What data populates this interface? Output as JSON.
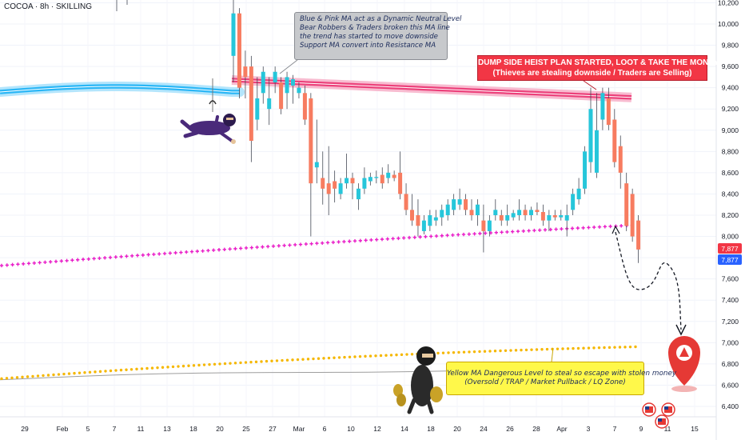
{
  "header": {
    "symbol": "COCOA · 8h · SKILLING"
  },
  "annotations": {
    "gray_note": [
      "Blue & Pink MA act as a Dynamic Neutral Level",
      "Bear Robbers & Traders broken this MA line",
      "the trend has started to move downside",
      "Support MA convert into Resistance MA"
    ],
    "red_banner": [
      "DUMP SIDE HEIST PLAN STARTED, LOOT & TAKE THE MONEY",
      "(Thieves are stealing downside / Traders are Selling)"
    ],
    "yellow_note": [
      "Yellow MA Dangerous Level to steal so escape with stolen money",
      "(Oversold / TRAP / Market Pullback / LQ Zone)"
    ]
  },
  "price_tags": {
    "last_price": "7,877",
    "last_price_secondary": "7,877",
    "colors": {
      "last": "#2962ff",
      "secondary": "#f23645"
    }
  },
  "chart_data": {
    "type": "candlestick",
    "ylim": [
      6320,
      10280
    ],
    "y_ticks": [
      "6,400",
      "6,600",
      "6,800",
      "7,000",
      "7,200",
      "7,400",
      "7,600",
      "7,800",
      "8,000",
      "8,200",
      "8,400",
      "8,600",
      "8,800",
      "9,000",
      "9,200",
      "9,400",
      "9,600",
      "9,800",
      "10,000",
      "10,200"
    ],
    "y_tick_values": [
      6400,
      6600,
      6800,
      7000,
      7200,
      7400,
      7600,
      7800,
      8000,
      8200,
      8400,
      8600,
      8800,
      9000,
      9200,
      9400,
      9600,
      9800,
      10000,
      10200
    ],
    "x_ticks": [
      "29",
      "Feb",
      "5",
      "7",
      "11",
      "13",
      "18",
      "20",
      "25",
      "27",
      "Mar",
      "6",
      "10",
      "12",
      "14",
      "18",
      "20",
      "24",
      "26",
      "28",
      "Apr",
      "3",
      "7",
      "9",
      "11",
      "15"
    ],
    "colors": {
      "up": "#26c6da",
      "down": "#f77c60",
      "blue_ma": "#29b6f6",
      "pink_ma": "#ec407a",
      "magenta_dots": "#e91ec8",
      "yellow_dots": "#f5b700",
      "gray_line": "#9e9e9e"
    },
    "candles": [
      [
        9700,
        10290,
        9450,
        10100
      ],
      [
        10100,
        10150,
        9300,
        9400
      ],
      [
        9600,
        9750,
        9300,
        9500
      ],
      [
        9600,
        9700,
        8700,
        8900
      ],
      [
        9100,
        9500,
        9000,
        9300
      ],
      [
        9350,
        9600,
        9250,
        9550
      ],
      [
        9200,
        9500,
        9050,
        9300
      ],
      [
        9450,
        9600,
        9350,
        9550
      ],
      [
        9450,
        9500,
        9150,
        9200
      ],
      [
        9350,
        9550,
        9200,
        9500
      ],
      [
        9420,
        9520,
        9250,
        9480
      ],
      [
        9350,
        9450,
        9300,
        9400
      ],
      [
        9350,
        9420,
        9050,
        9100
      ],
      [
        9300,
        9350,
        8000,
        8500
      ],
      [
        8650,
        9100,
        8500,
        8700
      ],
      [
        8550,
        8800,
        8300,
        8450
      ],
      [
        8500,
        8850,
        8200,
        8400
      ],
      [
        8520,
        8620,
        8320,
        8450
      ],
      [
        8400,
        8550,
        8350,
        8500
      ],
      [
        8500,
        8780,
        8450,
        8550
      ],
      [
        8550,
        8600,
        8350,
        8500
      ],
      [
        8350,
        8500,
        8250,
        8450
      ],
      [
        8450,
        8650,
        8400,
        8550
      ],
      [
        8520,
        8600,
        8480,
        8560
      ],
      [
        8550,
        8620,
        8500,
        8560
      ],
      [
        8580,
        8650,
        8450,
        8500
      ],
      [
        8550,
        8680,
        8500,
        8600
      ],
      [
        8580,
        8620,
        8520,
        8550
      ],
      [
        8600,
        8800,
        8350,
        8400
      ],
      [
        8400,
        8500,
        8200,
        8250
      ],
      [
        8250,
        8400,
        8100,
        8150
      ],
      [
        8200,
        8350,
        8000,
        8100
      ],
      [
        8050,
        8200,
        8020,
        8150
      ],
      [
        8100,
        8250,
        8050,
        8200
      ],
      [
        8150,
        8250,
        8100,
        8180
      ],
      [
        8180,
        8300,
        8100,
        8250
      ],
      [
        8200,
        8350,
        8150,
        8300
      ],
      [
        8250,
        8400,
        8200,
        8350
      ],
      [
        8300,
        8450,
        8250,
        8350
      ],
      [
        8350,
        8400,
        8200,
        8250
      ],
      [
        8250,
        8350,
        8150,
        8200
      ],
      [
        8200,
        8350,
        8100,
        8300
      ],
      [
        8150,
        8300,
        7850,
        8050
      ],
      [
        8050,
        8200,
        8000,
        8150
      ],
      [
        8200,
        8350,
        8150,
        8250
      ],
      [
        8200,
        8250,
        8100,
        8150
      ],
      [
        8150,
        8300,
        8100,
        8200
      ],
      [
        8180,
        8250,
        8150,
        8220
      ],
      [
        8200,
        8350,
        8150,
        8250
      ],
      [
        8250,
        8300,
        8150,
        8200
      ],
      [
        8200,
        8280,
        8150,
        8250
      ],
      [
        8250,
        8320,
        8200,
        8230
      ],
      [
        8230,
        8300,
        8100,
        8150
      ],
      [
        8150,
        8250,
        8050,
        8200
      ],
      [
        8200,
        8250,
        8150,
        8180
      ],
      [
        8180,
        8250,
        8150,
        8200
      ],
      [
        8150,
        8300,
        8000,
        8200
      ],
      [
        8250,
        8450,
        8200,
        8400
      ],
      [
        8350,
        8550,
        8300,
        8450
      ],
      [
        8450,
        8850,
        8400,
        8800
      ],
      [
        8700,
        9400,
        8600,
        9200
      ],
      [
        8600,
        9350,
        8550,
        9000
      ],
      [
        9100,
        9400,
        9000,
        9350
      ],
      [
        9300,
        9400,
        9000,
        9050
      ],
      [
        9100,
        9200,
        8650,
        8700
      ],
      [
        8850,
        8950,
        8450,
        8600
      ],
      [
        8500,
        8600,
        8050,
        8100
      ],
      [
        8400,
        8450,
        7950,
        8000
      ],
      [
        8150,
        8200,
        7750,
        7877
      ]
    ]
  }
}
